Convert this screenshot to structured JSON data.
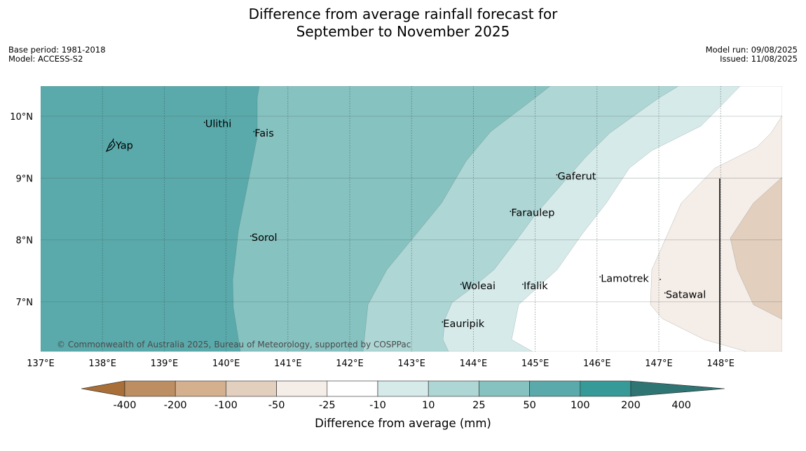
{
  "title": {
    "line1": "Difference from average rainfall forecast for",
    "line2": "September to November 2025"
  },
  "info_left": {
    "base_period": "Base period: 1981-2018",
    "model": "Model: ACCESS-S2"
  },
  "info_right": {
    "model_run": "Model run: 09/08/2025",
    "issued": "Issued: 11/08/2025"
  },
  "map": {
    "lon_range": [
      137,
      149
    ],
    "lat_range": [
      6.2,
      10.5
    ],
    "lon_ticks": [
      {
        "value": 137,
        "label": "137°E"
      },
      {
        "value": 138,
        "label": "138°E"
      },
      {
        "value": 139,
        "label": "139°E"
      },
      {
        "value": 140,
        "label": "140°E"
      },
      {
        "value": 141,
        "label": "141°E"
      },
      {
        "value": 142,
        "label": "142°E"
      },
      {
        "value": 143,
        "label": "143°E"
      },
      {
        "value": 144,
        "label": "144°E"
      },
      {
        "value": 145,
        "label": "145°E"
      },
      {
        "value": 146,
        "label": "146°E"
      },
      {
        "value": 147,
        "label": "147°E"
      },
      {
        "value": 148,
        "label": "148°E"
      }
    ],
    "lat_ticks": [
      {
        "value": 10,
        "label": "10°N"
      },
      {
        "value": 9,
        "label": "9°N"
      },
      {
        "value": 8,
        "label": "8°N"
      },
      {
        "value": 7,
        "label": "7°N"
      }
    ],
    "places": [
      {
        "name": "Yap",
        "lon": 138.2,
        "lat": 9.53
      },
      {
        "name": "Ulithi",
        "lon": 139.65,
        "lat": 9.88
      },
      {
        "name": "Fais",
        "lon": 140.45,
        "lat": 9.73
      },
      {
        "name": "Gaferut",
        "lon": 145.35,
        "lat": 9.03
      },
      {
        "name": "Faraulep",
        "lon": 144.6,
        "lat": 8.44
      },
      {
        "name": "Sorol",
        "lon": 140.4,
        "lat": 8.04
      },
      {
        "name": "Lamotrek",
        "lon": 146.05,
        "lat": 7.38
      },
      {
        "name": "Woleai",
        "lon": 143.8,
        "lat": 7.26
      },
      {
        "name": "Ifalik",
        "lon": 144.8,
        "lat": 7.26
      },
      {
        "name": "Satawal",
        "lon": 147.1,
        "lat": 7.12
      },
      {
        "name": "Eauripik",
        "lon": 143.5,
        "lat": 6.65
      }
    ],
    "copyright": "© Commonwealth of Australia 2025, Bureau of Meteorology, supported by COSPPac"
  },
  "colors": {
    "c_400n": "#a86f38",
    "c_200n": "#be8e63",
    "c_100n": "#d5b08f",
    "c_50n": "#e2cfbe",
    "c_25n": "#f5ede7",
    "c_10": "#ffffff",
    "c_25": "#d6eaea",
    "c_50": "#aed6d5",
    "c_100": "#86c2c0",
    "c_200": "#5aaaab",
    "c_400": "#369a99",
    "c_over": "#2f7574"
  },
  "legend": {
    "title": "Difference from average (mm)",
    "boundaries": [
      "-400",
      "-200",
      "-100",
      "-50",
      "-25",
      "-10",
      "10",
      "25",
      "50",
      "100",
      "200",
      "400"
    ]
  }
}
